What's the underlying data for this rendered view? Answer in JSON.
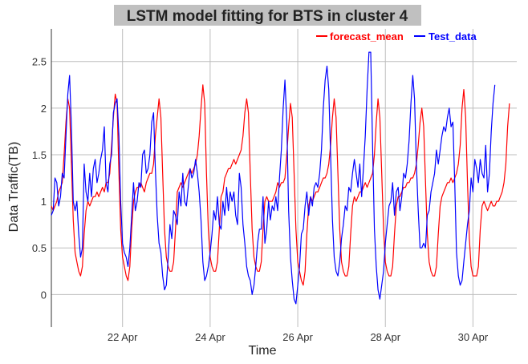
{
  "chart_data": {
    "type": "line",
    "title": "LSTM model fitting for BTS in cluster 4",
    "xlabel": "Time",
    "ylabel": "Data Traffic(TB)",
    "x_start": "2020-04-20 09:00",
    "x_end": "2020-05-01 00:00",
    "x_step_hours": 1,
    "xlim": [
      "2020-04-20 09:00",
      "2020-05-01 00:00"
    ],
    "ylim": [
      -0.35,
      2.85
    ],
    "x_ticks": [
      {
        "date": "2020-04-22",
        "label": "22 Apr"
      },
      {
        "date": "2020-04-24",
        "label": "24 Apr"
      },
      {
        "date": "2020-04-26",
        "label": "26 Apr"
      },
      {
        "date": "2020-04-28",
        "label": "28 Apr"
      },
      {
        "date": "2020-04-30",
        "label": "30 Apr"
      }
    ],
    "y_ticks": [
      {
        "value": 0,
        "label": "0"
      },
      {
        "value": 0.5,
        "label": "0.5"
      },
      {
        "value": 1,
        "label": "1"
      },
      {
        "value": 1.5,
        "label": "1.5"
      },
      {
        "value": 2,
        "label": "2"
      },
      {
        "value": 2.5,
        "label": "2.5"
      }
    ],
    "grid": true,
    "legend_position": "top-right",
    "series": [
      {
        "name": "forecast_mean",
        "color": "#ff0000",
        "values": [
          0.95,
          0.9,
          0.95,
          1.0,
          1.1,
          1.15,
          1.2,
          1.5,
          1.85,
          2.1,
          2.0,
          1.4,
          0.8,
          0.45,
          0.35,
          0.25,
          0.2,
          0.3,
          0.65,
          0.9,
          1.0,
          0.95,
          1.0,
          1.05,
          1.05,
          1.1,
          1.05,
          1.1,
          1.15,
          1.1,
          1.2,
          1.2,
          1.3,
          1.6,
          1.9,
          2.15,
          2.05,
          1.3,
          0.7,
          0.4,
          0.3,
          0.2,
          0.15,
          0.3,
          0.7,
          1.0,
          1.1,
          1.15,
          1.15,
          1.2,
          1.15,
          1.1,
          1.2,
          1.25,
          1.3,
          1.3,
          1.4,
          1.7,
          1.9,
          2.1,
          1.9,
          1.3,
          0.7,
          0.4,
          0.3,
          0.25,
          0.25,
          0.35,
          0.7,
          1.1,
          1.15,
          1.2,
          1.15,
          1.2,
          1.25,
          1.3,
          1.35,
          1.3,
          1.35,
          1.4,
          1.5,
          1.7,
          2.0,
          2.25,
          2.05,
          1.3,
          0.7,
          0.4,
          0.3,
          0.25,
          0.25,
          0.35,
          0.7,
          1.05,
          1.1,
          1.25,
          1.3,
          1.35,
          1.35,
          1.4,
          1.45,
          1.4,
          1.45,
          1.5,
          1.55,
          1.7,
          1.95,
          2.1,
          1.95,
          1.3,
          0.7,
          0.4,
          0.3,
          0.25,
          0.25,
          0.35,
          0.7,
          1.0,
          1.05,
          1.0,
          1.0,
          1.0,
          1.05,
          1.1,
          1.2,
          1.15,
          1.2,
          1.2,
          1.25,
          1.5,
          1.8,
          2.05,
          1.9,
          1.3,
          0.7,
          0.35,
          0.25,
          0.15,
          0.1,
          0.25,
          0.65,
          0.95,
          1.05,
          1.0,
          1.05,
          1.1,
          1.1,
          1.15,
          1.2,
          1.25,
          1.25,
          1.3,
          1.4,
          1.6,
          1.9,
          2.1,
          1.9,
          1.3,
          0.7,
          0.35,
          0.25,
          0.2,
          0.2,
          0.3,
          0.65,
          0.95,
          1.05,
          1.0,
          1.05,
          1.1,
          1.1,
          1.15,
          1.2,
          1.15,
          1.2,
          1.25,
          1.3,
          1.5,
          1.85,
          2.1,
          1.9,
          1.3,
          0.7,
          0.35,
          0.25,
          0.2,
          0.2,
          0.3,
          0.65,
          0.95,
          1.05,
          1.05,
          1.1,
          1.15,
          1.15,
          1.2,
          1.2,
          1.25,
          1.25,
          1.3,
          1.4,
          1.6,
          1.85,
          2.0,
          1.8,
          1.2,
          0.65,
          0.35,
          0.25,
          0.2,
          0.2,
          0.3,
          0.65,
          0.95,
          1.05,
          1.1,
          1.15,
          1.2,
          1.2,
          1.25,
          1.2,
          1.25,
          1.3,
          1.4,
          1.6,
          2.0,
          2.2,
          1.9,
          1.2,
          0.6,
          0.3,
          0.2,
          0.2,
          0.2,
          0.3,
          0.7,
          0.95,
          1.0,
          0.95,
          0.9,
          0.95,
          1.0,
          0.95,
          0.95,
          1.0,
          1.0,
          1.05,
          1.1,
          1.2,
          1.4,
          1.8,
          2.05
        ]
      },
      {
        "name": "Test_data",
        "color": "#0000ff",
        "values": [
          0.85,
          0.9,
          1.25,
          1.2,
          0.95,
          1.05,
          1.3,
          1.25,
          1.7,
          2.15,
          2.35,
          1.8,
          1.0,
          0.9,
          1.0,
          0.65,
          0.4,
          0.5,
          1.4,
          1.1,
          1.0,
          1.3,
          1.05,
          1.35,
          1.45,
          1.2,
          1.3,
          1.45,
          1.55,
          1.8,
          1.2,
          1.1,
          1.4,
          1.5,
          1.95,
          2.05,
          2.1,
          1.7,
          1.0,
          0.55,
          0.45,
          0.4,
          0.3,
          0.5,
          0.85,
          1.2,
          0.9,
          1.0,
          1.2,
          1.15,
          1.5,
          1.55,
          1.3,
          1.35,
          1.5,
          1.85,
          1.95,
          1.35,
          0.85,
          0.55,
          0.45,
          0.2,
          0.05,
          0.1,
          0.4,
          0.75,
          0.6,
          0.9,
          0.85,
          0.75,
          1.1,
          0.95,
          1.3,
          1.0,
          0.95,
          1.15,
          1.35,
          1.25,
          1.3,
          1.45,
          1.3,
          1.1,
          0.8,
          0.35,
          0.15,
          0.2,
          0.3,
          0.45,
          0.65,
          0.9,
          0.8,
          1.05,
          0.75,
          0.7,
          1.0,
          0.85,
          1.15,
          0.9,
          1.1,
          1.0,
          1.1,
          0.85,
          0.75,
          1.3,
          1.15,
          0.75,
          0.55,
          0.3,
          0.2,
          0.15,
          0.0,
          0.1,
          0.3,
          0.55,
          0.7,
          0.7,
          1.05,
          0.55,
          0.7,
          1.0,
          0.8,
          0.95,
          0.9,
          1.05,
          0.9,
          1.25,
          1.55,
          2.0,
          2.3,
          1.85,
          0.9,
          0.4,
          0.15,
          -0.05,
          -0.1,
          0.1,
          0.3,
          0.65,
          0.7,
          0.95,
          1.1,
          0.85,
          1.05,
          0.95,
          1.15,
          1.2,
          1.15,
          1.3,
          1.55,
          2.0,
          2.3,
          2.45,
          2.2,
          1.5,
          0.8,
          0.4,
          0.25,
          0.2,
          0.35,
          0.6,
          0.75,
          0.95,
          0.9,
          1.15,
          1.1,
          1.3,
          1.45,
          1.3,
          1.15,
          1.4,
          1.05,
          1.35,
          1.7,
          2.2,
          2.6,
          2.6,
          1.6,
          0.7,
          0.3,
          0.05,
          -0.05,
          0.1,
          0.25,
          0.55,
          0.75,
          0.95,
          1.0,
          1.2,
          0.85,
          1.1,
          1.15,
          0.9,
          1.05,
          1.3,
          1.25,
          1.4,
          1.65,
          2.05,
          2.35,
          2.1,
          1.4,
          0.9,
          0.5,
          0.5,
          0.55,
          0.5,
          0.85,
          0.9,
          1.1,
          1.2,
          1.3,
          1.55,
          1.4,
          1.55,
          1.7,
          1.8,
          1.75,
          1.9,
          2.0,
          1.8,
          1.85,
          1.2,
          0.45,
          0.2,
          0.1,
          0.15,
          0.35,
          0.55,
          0.75,
          0.9,
          1.25,
          1.1,
          1.45,
          1.35,
          1.2,
          1.45,
          1.3,
          1.25,
          1.6,
          1.1,
          1.3,
          1.75,
          2.05,
          2.25
        ]
      }
    ]
  }
}
